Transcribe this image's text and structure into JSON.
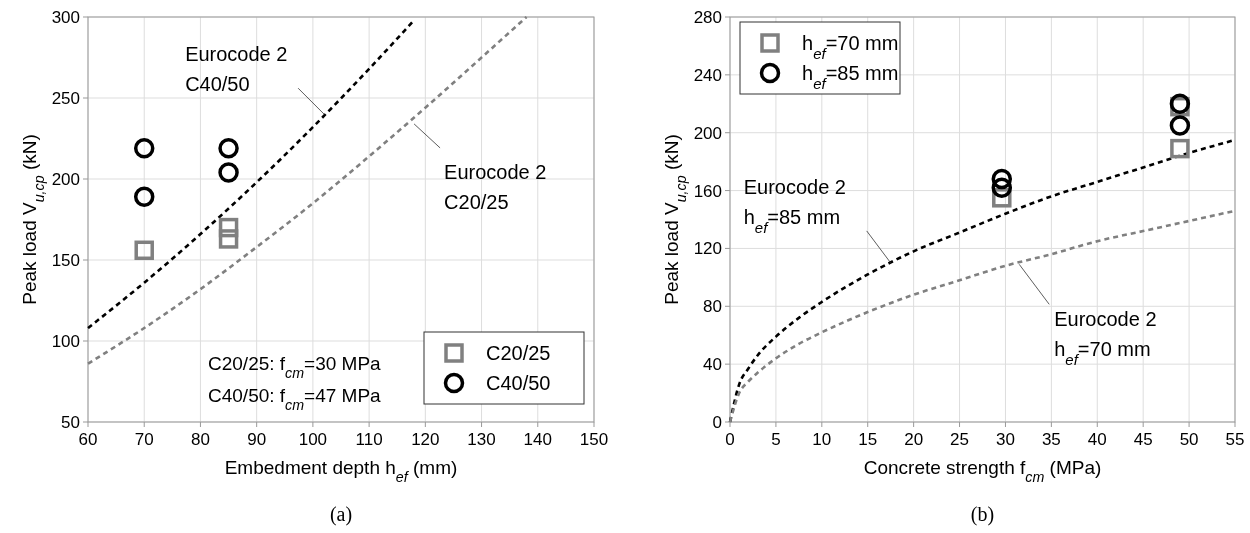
{
  "chart_data": [
    {
      "type": "scatter",
      "xlabel": "Embedment depth h$_{ef}$ (mm)",
      "ylabel": "Peak load V$_{u,cp}$ (kN)",
      "xlim": [
        60,
        150
      ],
      "ylim": [
        50,
        300
      ],
      "xticks": [
        60,
        70,
        80,
        90,
        100,
        110,
        120,
        130,
        140,
        150
      ],
      "yticks": [
        50,
        100,
        150,
        200,
        250,
        300
      ],
      "grid": true,
      "legend": "bottom right",
      "series": [
        {
          "type": "line",
          "color": "#000000",
          "line_style": "dashed",
          "x": [
            60,
            70,
            80,
            90,
            100,
            110,
            118
          ],
          "values": [
            108,
            136,
            166,
            198,
            232,
            268,
            298
          ]
        },
        {
          "type": "line",
          "color": "#808080",
          "line_style": "dashed",
          "x": [
            60,
            70,
            80,
            90,
            100,
            110,
            120,
            130,
            138
          ],
          "values": [
            86,
            108,
            132,
            158,
            185,
            214,
            244,
            275,
            300
          ]
        },
        {
          "name": "C20/25",
          "type": "scatter",
          "marker": "square",
          "color": "#808080",
          "x": [
            70,
            85,
            85
          ],
          "values": [
            156,
            170,
            163
          ]
        },
        {
          "name": "C40/50",
          "type": "scatter",
          "marker": "circle",
          "color": "#000000",
          "x": [
            70,
            70,
            85,
            85
          ],
          "values": [
            219,
            189,
            219,
            204
          ]
        }
      ],
      "annotations": [
        {
          "text": "Eurocode 2\nC40/50",
          "x": 102,
          "y": 240
        },
        {
          "text": "Eurocode 2\nC20/25",
          "x": 118,
          "y": 234
        },
        "C20/25: f$_{cm}$=30 MPa",
        "C40/50: f$_{cm}$=47 MPa",
        "(a)"
      ]
    },
    {
      "type": "scatter",
      "xlabel": "Concrete strength f$_{cm}$ (MPa)",
      "ylabel": "Peak load V$_{u,cp}$ (kN)",
      "xlim": [
        0,
        55
      ],
      "ylim": [
        0,
        280
      ],
      "xticks": [
        0,
        5,
        10,
        15,
        20,
        25,
        30,
        35,
        40,
        45,
        50,
        55
      ],
      "yticks": [
        0,
        40,
        80,
        120,
        160,
        200,
        240,
        280
      ],
      "grid": true,
      "legend": "top left",
      "series": [
        {
          "type": "line",
          "color": "#000000",
          "line_style": "dashed",
          "x": [
            0,
            1,
            2,
            3,
            5,
            7.5,
            10,
            15,
            20,
            25,
            30,
            35,
            40,
            45,
            50,
            55
          ],
          "values": [
            0,
            26,
            37,
            46,
            59,
            72,
            83,
            102,
            118,
            131,
            144,
            156,
            166,
            176,
            186,
            195
          ]
        },
        {
          "type": "line",
          "color": "#808080",
          "line_style": "dashed",
          "x": [
            0,
            1,
            2,
            3,
            5,
            7.5,
            10,
            15,
            20,
            25,
            30,
            35,
            40,
            45,
            50,
            55
          ],
          "values": [
            0,
            20,
            28,
            34,
            44,
            54,
            62,
            76,
            88,
            98,
            108,
            116,
            125,
            132,
            139,
            146
          ]
        },
        {
          "name": "h$_{ef}$=70 mm",
          "type": "scatter",
          "marker": "square",
          "color": "#808080",
          "x": [
            29.6,
            49,
            49
          ],
          "values": [
            155,
            189,
            218
          ]
        },
        {
          "name": "h$_{ef}$=85 mm",
          "type": "scatter",
          "marker": "circle",
          "color": "#000000",
          "x": [
            29.6,
            29.6,
            49,
            49
          ],
          "values": [
            168,
            162,
            220,
            205
          ]
        }
      ],
      "annotations": [
        {
          "text": "Eurocode 2\nh$_{ef}$=85 mm",
          "x": 17.5,
          "y": 110
        },
        {
          "text": "Eurocode 2\nh$_{ef}$=70 mm",
          "x": 31.5,
          "y": 109
        },
        "(b)"
      ]
    }
  ]
}
